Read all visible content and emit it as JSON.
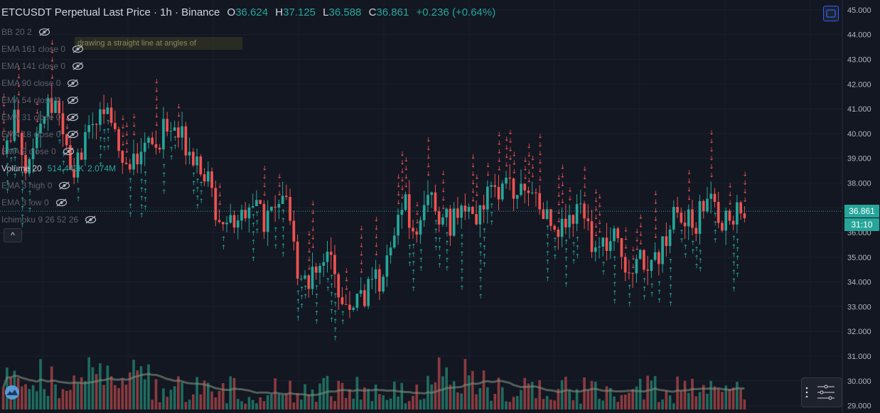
{
  "header": {
    "symbol": "ETCUSDT Perpetual Last Price · 1h · Binance",
    "o_label": "O",
    "o_value": "36.624",
    "h_label": "H",
    "h_value": "37.125",
    "l_label": "L",
    "l_value": "36.588",
    "c_label": "C",
    "c_value": "36.861",
    "change": "+0.236 (+0.64%)"
  },
  "indicators": [
    {
      "label": "BB 20 2",
      "active": false
    },
    {
      "label": "EMA 161 close 0",
      "active": false
    },
    {
      "label": "EMA 141 close 0",
      "active": false
    },
    {
      "label": "EMA 90 close 0",
      "active": false
    },
    {
      "label": "EMA 54 close 0",
      "active": false
    },
    {
      "label": "EMA 31 close 0",
      "active": false
    },
    {
      "label": "EMA 18 close 0",
      "active": false
    },
    {
      "label": "EMA 9 close 0",
      "active": false
    },
    {
      "label": "Volume 20",
      "active": true,
      "v1": "514.443K",
      "v2": "2.074M"
    },
    {
      "label": "EMA 3 high 0",
      "active": false
    },
    {
      "label": "EMA 3 low 0",
      "active": false
    },
    {
      "label": "Ichimoku 9 26 52 26",
      "active": false
    }
  ],
  "tooltip_text": "drawing a straight line at angles of",
  "collapse_glyph": "^",
  "last_price_tag": "36.861",
  "countdown_tag": "31:10",
  "colors": {
    "background": "#131722",
    "up": "#26a69a",
    "down": "#ef5350",
    "signal_up": "#26a69a",
    "signal_down": "#ef5350",
    "volume_ma": "#7a8a7a"
  },
  "chart_data": {
    "type": "candlestick",
    "y_axis_ticks": [
      "45.000",
      "44.000",
      "43.000",
      "42.000",
      "41.000",
      "40.000",
      "39.000",
      "38.000",
      "37.000",
      "36.000",
      "35.000",
      "34.000",
      "33.000",
      "32.000",
      "31.000",
      "30.000",
      "29.000"
    ],
    "ylim": [
      28.7,
      45.4
    ],
    "last_price": 36.861,
    "close_path": [
      39.2,
      40.5,
      38.5,
      39.8,
      41.5,
      40.0,
      38.8,
      39.6,
      40.5,
      41.1,
      39.5,
      38.6,
      40.1,
      39.1,
      40.6,
      40.0,
      39.4,
      38.7,
      37.0,
      36.4,
      36.6,
      37.4,
      36.4,
      36.9,
      37.0,
      34.6,
      34.1,
      34.5,
      35.0,
      32.6,
      33.4,
      33.6,
      34.2,
      35.1,
      37.3,
      35.6,
      37.9,
      36.7,
      36.3,
      37.0,
      36.5,
      37.2,
      37.6,
      37.8,
      37.9,
      37.4,
      36.8,
      36.3,
      36.6,
      36.9,
      35.8,
      35.5,
      35.6,
      34.7,
      35.1,
      34.6,
      35.3,
      36.8,
      36.3,
      36.5,
      37.9,
      36.5,
      36.6,
      36.861
    ],
    "volume_scale_note": "volume bars are relative heights"
  }
}
